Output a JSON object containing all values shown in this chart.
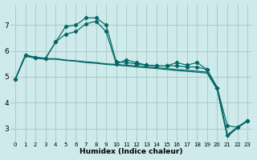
{
  "xlabel": "Humidex (Indice chaleur)",
  "background_color": "#ceeaea",
  "grid_color": "#aacccc",
  "line_color": "#006666",
  "xlim": [
    -0.5,
    23.5
  ],
  "ylim": [
    2.5,
    7.8
  ],
  "yticks": [
    3,
    4,
    5,
    6,
    7
  ],
  "xticks": [
    0,
    1,
    2,
    3,
    4,
    5,
    6,
    7,
    8,
    9,
    10,
    11,
    12,
    13,
    14,
    15,
    16,
    17,
    18,
    19,
    20,
    21,
    22,
    23
  ],
  "lines": [
    {
      "x": [
        0,
        1,
        2,
        3,
        4,
        5,
        6,
        7,
        8,
        9,
        10,
        11,
        12,
        13,
        14,
        15,
        16,
        17,
        18,
        19,
        20,
        21,
        22,
        23
      ],
      "y": [
        4.9,
        5.85,
        5.75,
        5.72,
        6.35,
        6.95,
        7.0,
        7.28,
        7.28,
        7.0,
        5.58,
        5.55,
        5.5,
        5.45,
        5.42,
        5.42,
        5.42,
        5.38,
        5.38,
        5.28,
        4.58,
        3.1,
        3.05,
        3.3
      ],
      "marker": true
    },
    {
      "x": [
        0,
        1,
        2,
        3,
        4,
        5,
        6,
        7,
        8,
        9,
        10,
        11,
        12,
        13,
        14,
        15,
        16,
        17,
        18,
        19,
        20,
        21,
        22,
        23
      ],
      "y": [
        4.9,
        5.82,
        5.75,
        5.7,
        5.7,
        5.65,
        5.62,
        5.58,
        5.55,
        5.5,
        5.48,
        5.45,
        5.42,
        5.38,
        5.35,
        5.32,
        5.28,
        5.25,
        5.22,
        5.18,
        4.55,
        2.72,
        3.05,
        3.3
      ],
      "marker": false
    },
    {
      "x": [
        0,
        1,
        2,
        3,
        4,
        5,
        6,
        7,
        8,
        9,
        10,
        11,
        12,
        13,
        14,
        15,
        16,
        17,
        18,
        19,
        20,
        21,
        22,
        23
      ],
      "y": [
        4.9,
        5.8,
        5.72,
        5.68,
        5.68,
        5.63,
        5.6,
        5.55,
        5.52,
        5.48,
        5.45,
        5.42,
        5.38,
        5.35,
        5.32,
        5.28,
        5.24,
        5.21,
        5.18,
        5.14,
        4.5,
        2.68,
        3.02,
        3.28
      ],
      "marker": false
    },
    {
      "x": [
        0,
        1,
        2,
        3,
        4,
        5,
        6,
        7,
        8,
        9,
        10,
        11,
        12,
        13,
        14,
        15,
        16,
        17,
        18,
        19,
        20,
        21,
        22,
        23
      ],
      "y": [
        4.9,
        5.82,
        5.75,
        5.7,
        6.35,
        6.65,
        6.75,
        7.05,
        7.15,
        6.75,
        5.5,
        5.65,
        5.55,
        5.45,
        5.42,
        5.42,
        5.55,
        5.45,
        5.55,
        5.28,
        4.58,
        2.75,
        3.05,
        3.3
      ],
      "marker": true
    }
  ]
}
